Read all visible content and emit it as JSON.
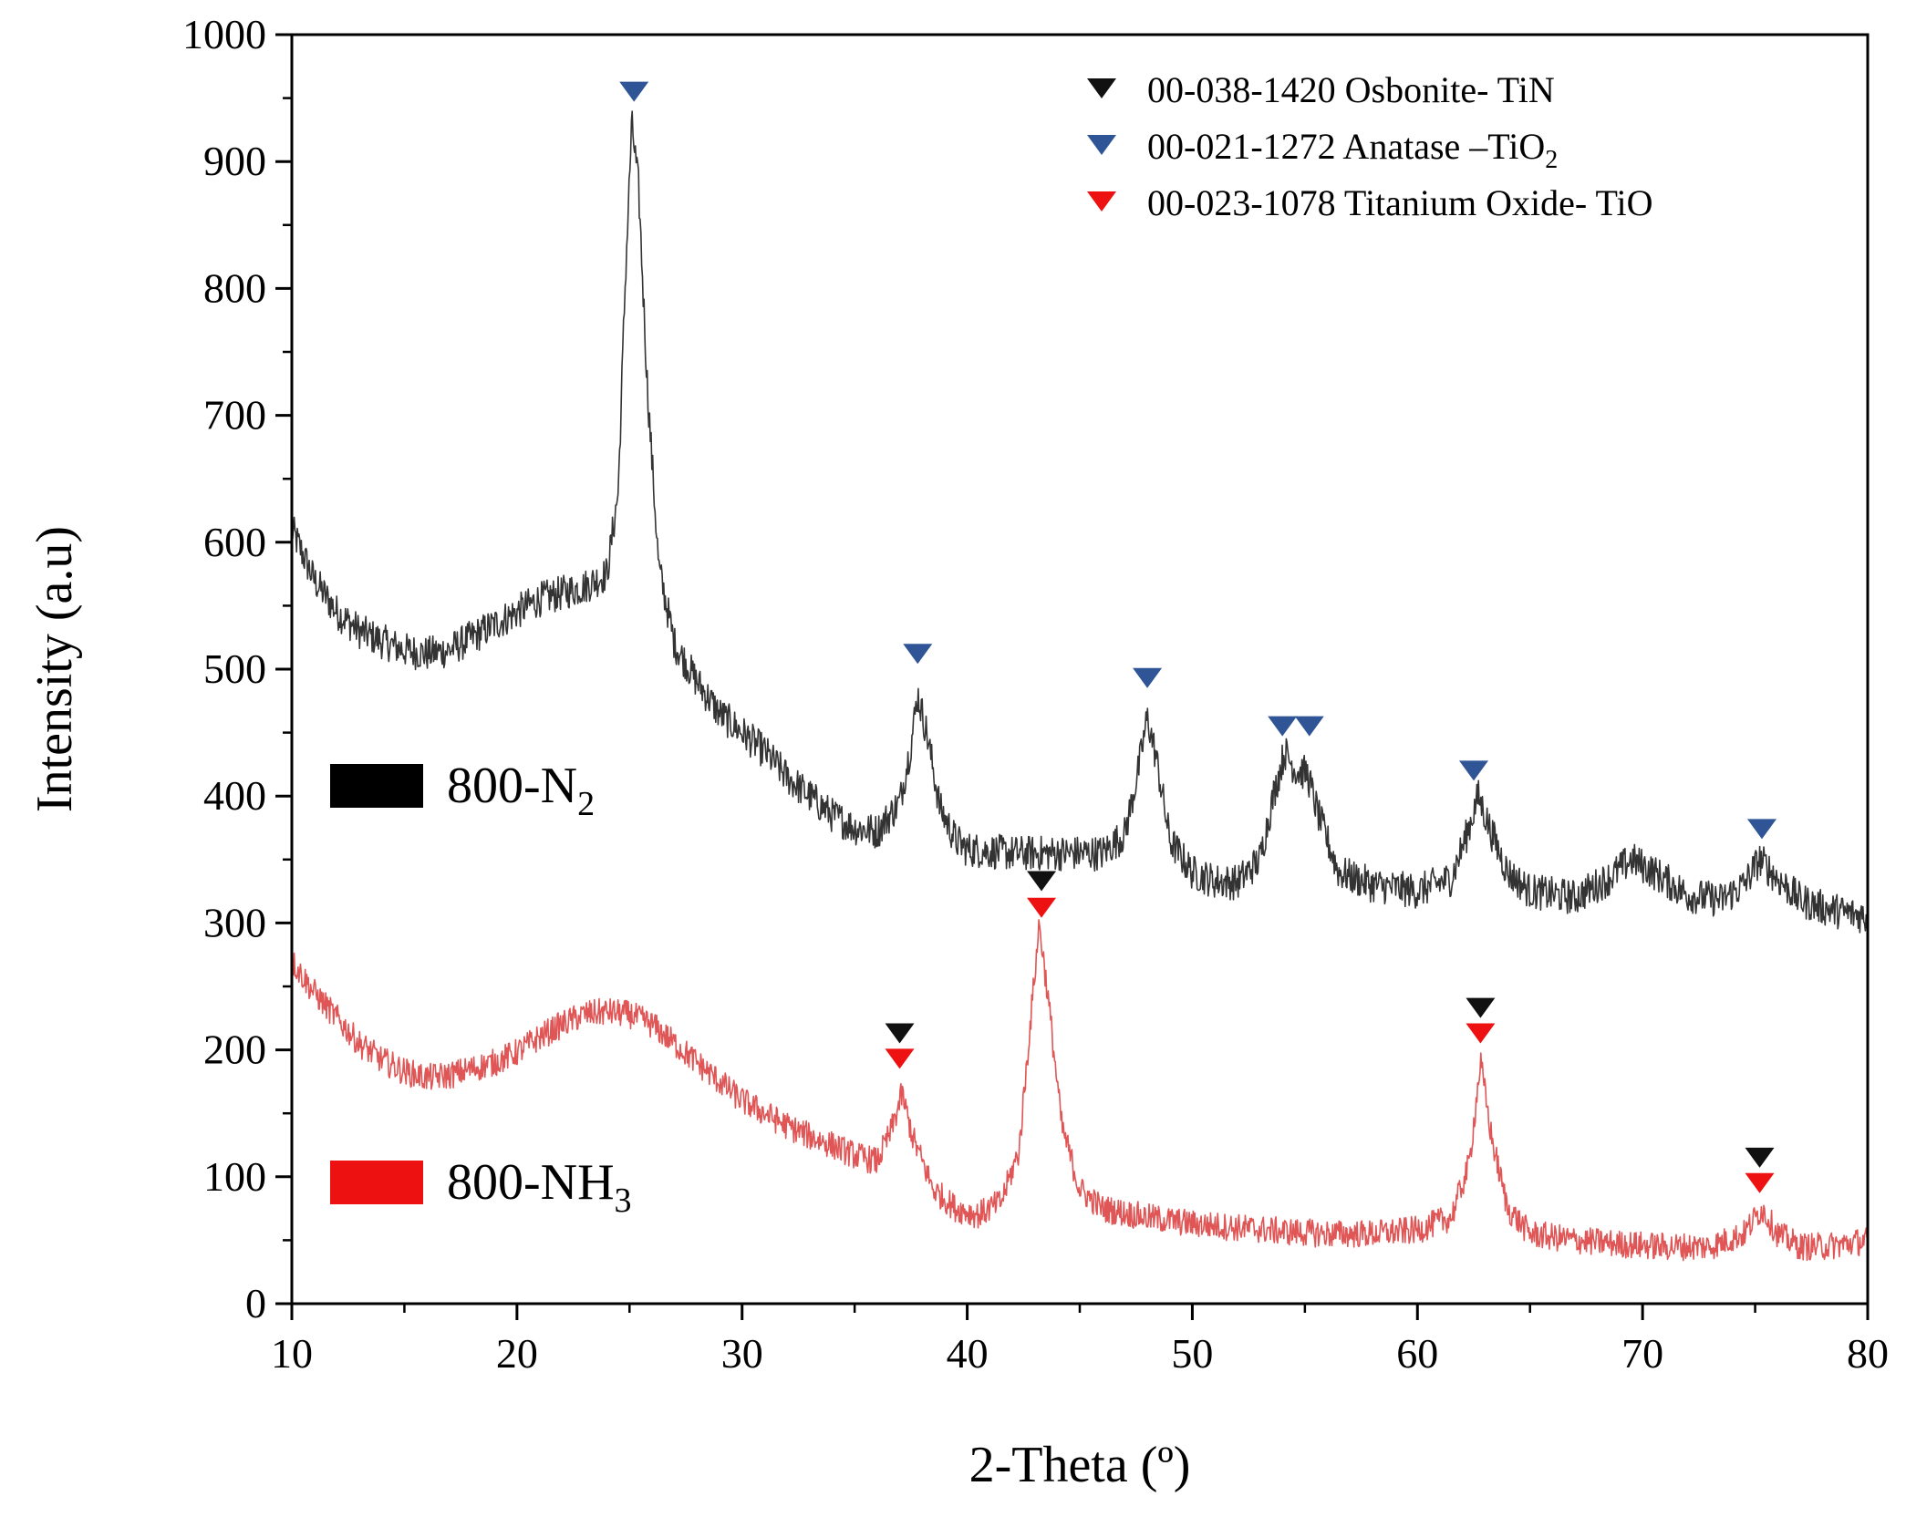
{
  "chart_data": {
    "type": "line",
    "title": "",
    "xlabel": "2-Theta (º)",
    "ylabel": "Intensity (a.u)",
    "xlim": [
      10,
      80
    ],
    "ylim": [
      0,
      1000
    ],
    "x_ticks": [
      10,
      20,
      30,
      40,
      50,
      60,
      70,
      80
    ],
    "x_tick_labels": [
      "10",
      "20",
      "30",
      "40",
      "50",
      "60",
      "70",
      "80"
    ],
    "y_ticks": [
      0,
      100,
      200,
      300,
      400,
      500,
      600,
      700,
      800,
      900,
      1000
    ],
    "y_tick_labels": [
      "0",
      "100",
      "200",
      "300",
      "400",
      "500",
      "600",
      "700",
      "800",
      "900",
      "1000"
    ],
    "grid": false,
    "legend": {
      "placement": "top-right",
      "entries": [
        {
          "code": "00-038-1420",
          "name": "Osbonite- TiN",
          "sub": "",
          "color": "#111111"
        },
        {
          "code": "00-021-1272",
          "name": "Anatase –TiO",
          "sub": "2",
          "color": "#2F5597"
        },
        {
          "code": "00-023-1078",
          "name": "Titanium Oxide- TiO",
          "sub": "",
          "color": "#EE1111"
        }
      ]
    },
    "series": [
      {
        "name": "800-N",
        "name_sub": "2",
        "color": "#333333",
        "label_swatch_color": "#000000",
        "points": [
          [
            10,
            610
          ],
          [
            11,
            570
          ],
          [
            12,
            545
          ],
          [
            13,
            530
          ],
          [
            14,
            522
          ],
          [
            15,
            515
          ],
          [
            16,
            512
          ],
          [
            17,
            515
          ],
          [
            18,
            525
          ],
          [
            19,
            535
          ],
          [
            20,
            545
          ],
          [
            21,
            555
          ],
          [
            22,
            560
          ],
          [
            23,
            565
          ],
          [
            24,
            575
          ],
          [
            24.5,
            640
          ],
          [
            24.8,
            800
          ],
          [
            25.1,
            930
          ],
          [
            25.4,
            880
          ],
          [
            25.8,
            720
          ],
          [
            26.3,
            580
          ],
          [
            27,
            520
          ],
          [
            28,
            490
          ],
          [
            29,
            465
          ],
          [
            30,
            450
          ],
          [
            31,
            435
          ],
          [
            32,
            415
          ],
          [
            33,
            400
          ],
          [
            34,
            385
          ],
          [
            35,
            375
          ],
          [
            36,
            372
          ],
          [
            37,
            395
          ],
          [
            37.5,
            440
          ],
          [
            37.8,
            480
          ],
          [
            38.2,
            450
          ],
          [
            38.8,
            390
          ],
          [
            39.5,
            365
          ],
          [
            40,
            358
          ],
          [
            42,
            355
          ],
          [
            44,
            355
          ],
          [
            46,
            355
          ],
          [
            47,
            370
          ],
          [
            47.6,
            420
          ],
          [
            48,
            462
          ],
          [
            48.4,
            430
          ],
          [
            49,
            365
          ],
          [
            50,
            340
          ],
          [
            51,
            333
          ],
          [
            52,
            332
          ],
          [
            53,
            350
          ],
          [
            53.6,
            400
          ],
          [
            54.1,
            435
          ],
          [
            54.6,
            420
          ],
          [
            55.1,
            418
          ],
          [
            55.6,
            385
          ],
          [
            56.5,
            340
          ],
          [
            58,
            330
          ],
          [
            60,
            325
          ],
          [
            61.5,
            335
          ],
          [
            62.2,
            370
          ],
          [
            62.7,
            400
          ],
          [
            63.2,
            375
          ],
          [
            64,
            340
          ],
          [
            65,
            325
          ],
          [
            67,
            320
          ],
          [
            68.5,
            335
          ],
          [
            69.5,
            350
          ],
          [
            70.5,
            340
          ],
          [
            72,
            322
          ],
          [
            73.5,
            318
          ],
          [
            74.5,
            330
          ],
          [
            75.2,
            350
          ],
          [
            76,
            335
          ],
          [
            77,
            318
          ],
          [
            78,
            312
          ],
          [
            79,
            308
          ],
          [
            80,
            305
          ]
        ],
        "peak_markers": [
          {
            "x": 25.2,
            "y": 955,
            "phase": "00-021-1272"
          },
          {
            "x": 37.8,
            "y": 512,
            "phase": "00-021-1272"
          },
          {
            "x": 48.0,
            "y": 493,
            "phase": "00-021-1272"
          },
          {
            "x": 54.0,
            "y": 455,
            "phase": "00-021-1272"
          },
          {
            "x": 55.2,
            "y": 455,
            "phase": "00-021-1272"
          },
          {
            "x": 62.5,
            "y": 420,
            "phase": "00-021-1272"
          },
          {
            "x": 75.3,
            "y": 374,
            "phase": "00-021-1272"
          }
        ]
      },
      {
        "name": "800-NH",
        "name_sub": "3",
        "color": "#E05555",
        "label_swatch_color": "#EE1111",
        "points": [
          [
            10,
            270
          ],
          [
            11,
            245
          ],
          [
            12,
            225
          ],
          [
            13,
            205
          ],
          [
            14,
            192
          ],
          [
            15,
            183
          ],
          [
            16,
            178
          ],
          [
            17,
            180
          ],
          [
            18,
            185
          ],
          [
            19,
            190
          ],
          [
            20,
            198
          ],
          [
            21,
            210
          ],
          [
            22,
            220
          ],
          [
            23,
            228
          ],
          [
            24,
            230
          ],
          [
            25,
            228
          ],
          [
            26,
            220
          ],
          [
            27,
            205
          ],
          [
            28,
            190
          ],
          [
            29,
            175
          ],
          [
            30,
            160
          ],
          [
            31,
            150
          ],
          [
            32,
            140
          ],
          [
            33,
            132
          ],
          [
            34,
            125
          ],
          [
            35,
            117
          ],
          [
            36,
            112
          ],
          [
            36.6,
            135
          ],
          [
            37.1,
            165
          ],
          [
            37.6,
            130
          ],
          [
            38.5,
            90
          ],
          [
            39.5,
            75
          ],
          [
            40.5,
            70
          ],
          [
            41.5,
            80
          ],
          [
            42.3,
            120
          ],
          [
            42.8,
            220
          ],
          [
            43.2,
            300
          ],
          [
            43.6,
            240
          ],
          [
            44.2,
            140
          ],
          [
            45,
            90
          ],
          [
            46,
            75
          ],
          [
            48,
            68
          ],
          [
            50,
            63
          ],
          [
            52,
            60
          ],
          [
            54,
            57
          ],
          [
            56,
            55
          ],
          [
            58,
            55
          ],
          [
            60,
            58
          ],
          [
            61.5,
            68
          ],
          [
            62.3,
            110
          ],
          [
            62.8,
            190
          ],
          [
            63.3,
            130
          ],
          [
            64,
            75
          ],
          [
            65,
            55
          ],
          [
            67,
            50
          ],
          [
            69,
            47
          ],
          [
            71,
            45
          ],
          [
            73,
            45
          ],
          [
            74.5,
            55
          ],
          [
            75.3,
            75
          ],
          [
            76,
            55
          ],
          [
            77,
            45
          ],
          [
            78,
            45
          ],
          [
            79,
            47
          ],
          [
            80,
            50
          ]
        ],
        "peak_markers": [
          {
            "x": 37.0,
            "y": 213,
            "phase": "00-038-1420"
          },
          {
            "x": 37.0,
            "y": 193,
            "phase": "00-023-1078"
          },
          {
            "x": 43.3,
            "y": 333,
            "phase": "00-038-1420"
          },
          {
            "x": 43.3,
            "y": 312,
            "phase": "00-023-1078"
          },
          {
            "x": 62.8,
            "y": 233,
            "phase": "00-038-1420"
          },
          {
            "x": 62.8,
            "y": 213,
            "phase": "00-023-1078"
          },
          {
            "x": 75.2,
            "y": 115,
            "phase": "00-038-1420"
          },
          {
            "x": 75.2,
            "y": 95,
            "phase": "00-023-1078"
          }
        ]
      }
    ]
  }
}
